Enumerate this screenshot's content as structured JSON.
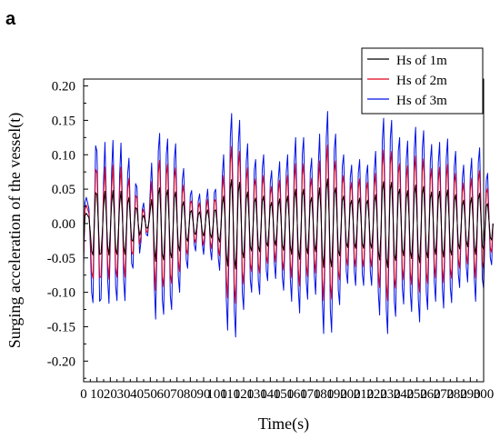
{
  "panel_label": "a",
  "chart_data": {
    "type": "line",
    "title": "",
    "xlabel": "Time(s)",
    "ylabel": "Surging acceleration of the vessel(t)",
    "xlim": [
      0,
      300
    ],
    "ylim": [
      -0.23,
      0.21
    ],
    "xticks": [
      0,
      10,
      20,
      30,
      40,
      50,
      60,
      70,
      80,
      90,
      100,
      110,
      120,
      130,
      140,
      150,
      160,
      170,
      180,
      190,
      200,
      210,
      220,
      230,
      240,
      250,
      260,
      270,
      280,
      290,
      300
    ],
    "xtick_labels": [
      "0",
      "10",
      "20",
      "30",
      "40",
      "50",
      "60",
      "70",
      "80",
      "90",
      "100",
      "110",
      "120",
      "130",
      "140",
      "150",
      "160",
      "170",
      "180",
      "190",
      "200",
      "210",
      "220",
      "230",
      "240",
      "250",
      "260",
      "270",
      "280",
      "290",
      "300"
    ],
    "yticks": [
      0.2,
      0.15,
      0.1,
      0.05,
      0.0,
      -0.05,
      -0.1,
      -0.15,
      -0.2
    ],
    "ytick_labels": [
      "0.20",
      "0.15",
      "0.10",
      "0.05",
      "0.00",
      "-0.05",
      "-0.10",
      "-0.15",
      "-0.20"
    ],
    "grid": false,
    "legend_position": "top-right",
    "sample_step": 1,
    "series": [
      {
        "name": "Hs of 1m",
        "color": "#000000",
        "values": [
          -0.03,
          0.011,
          0.015,
          0.012,
          0.008,
          -0.012,
          -0.04,
          -0.046,
          0.0,
          0.045,
          0.042,
          0.002,
          -0.045,
          -0.044,
          -0.014,
          0.026,
          0.047,
          0.013,
          -0.032,
          -0.046,
          -0.011,
          0.03,
          0.048,
          0.013,
          -0.036,
          -0.045,
          -0.014,
          0.028,
          0.047,
          0.014,
          -0.033,
          -0.045,
          -0.013,
          0.029,
          0.038,
          0.006,
          -0.023,
          -0.026,
          0.0,
          0.023,
          0.021,
          -0.001,
          -0.017,
          -0.01,
          0.008,
          0.012,
          0.004,
          -0.006,
          -0.007,
          0.002,
          0.02,
          0.035,
          0.012,
          -0.036,
          -0.055,
          -0.015,
          0.042,
          0.052,
          0.009,
          -0.044,
          -0.053,
          -0.012,
          0.04,
          0.049,
          0.007,
          -0.042,
          -0.05,
          -0.011,
          0.037,
          0.046,
          0.007,
          -0.031,
          -0.04,
          -0.007,
          0.025,
          0.032,
          0.006,
          -0.021,
          -0.026,
          -0.005,
          0.016,
          0.019,
          0.004,
          -0.013,
          -0.016,
          -0.003,
          0.013,
          0.017,
          0.005,
          -0.012,
          -0.018,
          -0.006,
          0.013,
          0.02,
          0.007,
          -0.015,
          -0.021,
          -0.005,
          0.018,
          0.02,
          0.002,
          -0.02,
          -0.027,
          -0.004,
          0.028,
          0.04,
          0.009,
          -0.044,
          -0.062,
          -0.016,
          0.05,
          0.064,
          0.016,
          -0.05,
          -0.066,
          -0.017,
          0.046,
          0.06,
          0.015,
          -0.04,
          -0.05,
          -0.01,
          0.036,
          0.046,
          0.009,
          -0.033,
          -0.04,
          -0.007,
          0.031,
          0.037,
          0.005,
          -0.033,
          -0.041,
          -0.007,
          0.032,
          0.04,
          0.008,
          -0.027,
          -0.033,
          -0.007,
          0.024,
          0.031,
          0.009,
          -0.023,
          -0.032,
          -0.008,
          0.026,
          0.036,
          0.009,
          -0.031,
          -0.039,
          -0.009,
          0.03,
          0.04,
          0.01,
          -0.032,
          -0.045,
          -0.012,
          0.036,
          0.05,
          0.012,
          -0.038,
          -0.052,
          -0.011,
          0.04,
          0.05,
          0.01,
          -0.034,
          -0.044,
          -0.009,
          0.03,
          0.038,
          0.008,
          -0.03,
          -0.041,
          -0.011,
          0.034,
          0.052,
          0.016,
          -0.045,
          -0.064,
          -0.017,
          0.05,
          0.065,
          0.016,
          -0.05,
          -0.063,
          -0.015,
          0.043,
          0.052,
          0.01,
          -0.039,
          -0.047,
          -0.009,
          0.033,
          0.04,
          0.009,
          -0.028,
          -0.035,
          -0.008,
          0.027,
          0.034,
          0.008,
          -0.028,
          -0.036,
          -0.008,
          0.029,
          0.037,
          0.009,
          -0.029,
          -0.036,
          -0.007,
          0.028,
          0.034,
          0.007,
          -0.028,
          -0.036,
          -0.009,
          0.031,
          0.042,
          0.01,
          -0.04,
          -0.053,
          -0.012,
          0.048,
          0.061,
          0.014,
          -0.05,
          -0.064,
          -0.015,
          0.049,
          0.06,
          0.013,
          -0.045,
          -0.054,
          -0.01,
          0.042,
          0.05,
          0.01,
          -0.037,
          -0.047,
          -0.011,
          0.037,
          0.048,
          0.011,
          -0.04,
          -0.051,
          -0.012,
          0.043,
          0.056,
          0.013,
          -0.044,
          -0.057,
          -0.012,
          0.043,
          0.054,
          0.012,
          -0.04,
          -0.05,
          -0.011,
          0.036,
          0.046,
          0.011,
          -0.034,
          -0.045,
          -0.01,
          0.035,
          0.047,
          0.012,
          -0.037,
          -0.049,
          -0.011,
          0.038,
          0.049,
          0.01,
          -0.037,
          -0.046,
          -0.009,
          0.033,
          0.042,
          0.009,
          -0.029,
          -0.037,
          -0.008,
          0.026,
          0.034,
          0.008,
          -0.025,
          -0.034,
          -0.008,
          0.028,
          0.038,
          0.009,
          -0.032,
          -0.045,
          -0.011,
          0.035,
          0.044,
          0.008,
          -0.032,
          -0.038,
          -0.006,
          0.025,
          0.029,
          0.004,
          -0.02,
          -0.024,
          0.0
        ]
      },
      {
        "name": "Hs of 2m",
        "color": "#e0001b",
        "values": [
          -0.05,
          0.02,
          0.027,
          0.021,
          0.014,
          -0.021,
          -0.07,
          -0.08,
          0.0,
          0.079,
          0.073,
          0.003,
          -0.079,
          -0.077,
          -0.024,
          0.046,
          0.082,
          0.023,
          -0.057,
          -0.081,
          -0.019,
          0.052,
          0.085,
          0.023,
          -0.064,
          -0.078,
          -0.024,
          0.049,
          0.082,
          0.025,
          -0.057,
          -0.078,
          -0.022,
          0.05,
          0.066,
          0.011,
          -0.041,
          -0.045,
          0.0,
          0.041,
          0.037,
          -0.002,
          -0.03,
          -0.018,
          0.015,
          0.021,
          0.007,
          -0.011,
          -0.013,
          0.004,
          0.034,
          0.061,
          0.021,
          -0.062,
          -0.097,
          -0.026,
          0.073,
          0.092,
          0.016,
          -0.077,
          -0.092,
          -0.021,
          0.07,
          0.086,
          0.012,
          -0.073,
          -0.087,
          -0.019,
          0.065,
          0.081,
          0.013,
          -0.054,
          -0.07,
          -0.013,
          0.044,
          0.056,
          0.01,
          -0.037,
          -0.045,
          -0.009,
          0.029,
          0.033,
          0.007,
          -0.022,
          -0.028,
          -0.005,
          0.023,
          0.03,
          0.008,
          -0.021,
          -0.032,
          -0.011,
          0.023,
          0.035,
          0.012,
          -0.026,
          -0.037,
          -0.009,
          0.032,
          0.035,
          0.004,
          -0.035,
          -0.047,
          -0.008,
          0.049,
          0.07,
          0.016,
          -0.077,
          -0.108,
          -0.028,
          0.087,
          0.112,
          0.028,
          -0.088,
          -0.116,
          -0.03,
          0.081,
          0.105,
          0.026,
          -0.07,
          -0.088,
          -0.017,
          0.063,
          0.081,
          0.016,
          -0.058,
          -0.07,
          -0.012,
          0.054,
          0.065,
          0.009,
          -0.058,
          -0.072,
          -0.012,
          0.056,
          0.07,
          0.014,
          -0.047,
          -0.058,
          -0.012,
          0.042,
          0.054,
          0.016,
          -0.04,
          -0.056,
          -0.014,
          0.045,
          0.063,
          0.016,
          -0.054,
          -0.068,
          -0.016,
          0.053,
          0.07,
          0.017,
          -0.056,
          -0.079,
          -0.021,
          0.063,
          0.087,
          0.021,
          -0.066,
          -0.091,
          -0.019,
          0.07,
          0.087,
          0.017,
          -0.06,
          -0.077,
          -0.016,
          0.052,
          0.066,
          0.014,
          -0.052,
          -0.072,
          -0.019,
          0.06,
          0.091,
          0.028,
          -0.079,
          -0.112,
          -0.03,
          0.087,
          0.114,
          0.028,
          -0.087,
          -0.11,
          -0.026,
          0.075,
          0.091,
          0.017,
          -0.068,
          -0.082,
          -0.016,
          0.058,
          0.07,
          0.016,
          -0.049,
          -0.061,
          -0.014,
          0.047,
          0.06,
          0.014,
          -0.049,
          -0.063,
          -0.014,
          0.051,
          0.065,
          0.016,
          -0.051,
          -0.063,
          -0.012,
          0.049,
          0.06,
          0.012,
          -0.049,
          -0.063,
          -0.016,
          0.054,
          0.073,
          0.017,
          -0.07,
          -0.093,
          -0.021,
          0.084,
          0.107,
          0.024,
          -0.087,
          -0.112,
          -0.026,
          0.086,
          0.105,
          0.023,
          -0.079,
          -0.094,
          -0.017,
          0.073,
          0.087,
          0.017,
          -0.065,
          -0.082,
          -0.019,
          0.065,
          0.084,
          0.019,
          -0.07,
          -0.089,
          -0.021,
          0.075,
          0.098,
          0.023,
          -0.077,
          -0.1,
          -0.021,
          0.075,
          0.094,
          0.021,
          -0.07,
          -0.087,
          -0.019,
          0.063,
          0.08,
          0.019,
          -0.059,
          -0.079,
          -0.017,
          0.061,
          0.082,
          0.021,
          -0.065,
          -0.086,
          -0.019,
          0.066,
          0.086,
          0.017,
          -0.065,
          -0.08,
          -0.016,
          0.058,
          0.073,
          0.016,
          -0.051,
          -0.065,
          -0.014,
          0.045,
          0.059,
          0.014,
          -0.044,
          -0.059,
          -0.014,
          0.049,
          0.066,
          0.016,
          -0.056,
          -0.079,
          -0.019,
          0.061,
          0.077,
          0.014,
          -0.056,
          -0.066,
          -0.01,
          0.044,
          0.051,
          0.007,
          -0.035,
          -0.042,
          0.0
        ]
      },
      {
        "name": "Hs of 3m",
        "color": "#0010e6",
        "values": [
          -0.06,
          0.03,
          0.038,
          0.03,
          0.021,
          -0.031,
          -0.1,
          -0.115,
          0.0,
          0.113,
          0.105,
          0.005,
          -0.113,
          -0.11,
          -0.035,
          0.065,
          0.118,
          0.033,
          -0.081,
          -0.116,
          -0.028,
          0.075,
          0.121,
          0.033,
          -0.091,
          -0.112,
          -0.035,
          0.07,
          0.117,
          0.035,
          -0.082,
          -0.112,
          -0.032,
          0.072,
          0.095,
          0.016,
          -0.058,
          -0.065,
          0.0,
          0.058,
          0.053,
          -0.003,
          -0.043,
          -0.026,
          0.021,
          0.03,
          0.01,
          -0.016,
          -0.018,
          0.006,
          0.049,
          0.088,
          0.03,
          -0.089,
          -0.139,
          -0.037,
          0.105,
          0.131,
          0.023,
          -0.11,
          -0.132,
          -0.03,
          0.1,
          0.123,
          0.017,
          -0.105,
          -0.125,
          -0.028,
          0.093,
          0.116,
          0.019,
          -0.077,
          -0.1,
          -0.018,
          0.063,
          0.08,
          0.014,
          -0.053,
          -0.065,
          -0.012,
          0.041,
          0.048,
          0.01,
          -0.031,
          -0.04,
          -0.007,
          0.033,
          0.043,
          0.012,
          -0.03,
          -0.045,
          -0.016,
          0.033,
          0.05,
          0.017,
          -0.037,
          -0.053,
          -0.013,
          0.045,
          0.05,
          0.006,
          -0.05,
          -0.068,
          -0.01,
          0.07,
          0.1,
          0.023,
          -0.11,
          -0.155,
          -0.04,
          0.125,
          0.16,
          0.04,
          -0.126,
          -0.165,
          -0.042,
          0.116,
          0.15,
          0.037,
          -0.1,
          -0.125,
          -0.025,
          0.09,
          0.116,
          0.023,
          -0.082,
          -0.1,
          -0.018,
          0.078,
          0.093,
          0.013,
          -0.083,
          -0.103,
          -0.018,
          0.08,
          0.1,
          0.02,
          -0.068,
          -0.083,
          -0.017,
          0.06,
          0.077,
          0.023,
          -0.057,
          -0.08,
          -0.02,
          0.065,
          0.09,
          0.023,
          -0.077,
          -0.097,
          -0.023,
          0.075,
          0.1,
          0.025,
          -0.08,
          -0.113,
          -0.03,
          0.09,
          0.125,
          0.03,
          -0.095,
          -0.13,
          -0.028,
          0.1,
          0.125,
          0.025,
          -0.085,
          -0.11,
          -0.023,
          0.075,
          0.095,
          0.02,
          -0.075,
          -0.103,
          -0.028,
          0.085,
          0.13,
          0.04,
          -0.113,
          -0.16,
          -0.043,
          0.125,
          0.163,
          0.04,
          -0.125,
          -0.158,
          -0.037,
          0.108,
          0.13,
          0.025,
          -0.097,
          -0.118,
          -0.023,
          0.083,
          0.1,
          0.023,
          -0.07,
          -0.087,
          -0.02,
          0.067,
          0.085,
          0.02,
          -0.07,
          -0.09,
          -0.02,
          0.073,
          0.093,
          0.023,
          -0.073,
          -0.09,
          -0.017,
          0.07,
          0.085,
          0.017,
          -0.07,
          -0.09,
          -0.023,
          0.077,
          0.105,
          0.025,
          -0.1,
          -0.133,
          -0.03,
          0.12,
          0.153,
          0.035,
          -0.125,
          -0.16,
          -0.037,
          0.123,
          0.15,
          0.033,
          -0.113,
          -0.135,
          -0.025,
          0.105,
          0.125,
          0.025,
          -0.093,
          -0.117,
          -0.027,
          0.093,
          0.12,
          0.027,
          -0.1,
          -0.128,
          -0.03,
          0.108,
          0.14,
          0.033,
          -0.11,
          -0.143,
          -0.03,
          0.108,
          0.135,
          0.03,
          -0.1,
          -0.125,
          -0.027,
          0.09,
          0.115,
          0.027,
          -0.085,
          -0.113,
          -0.025,
          0.088,
          0.118,
          0.03,
          -0.093,
          -0.123,
          -0.027,
          0.095,
          0.123,
          0.025,
          -0.093,
          -0.115,
          -0.023,
          0.083,
          0.105,
          0.023,
          -0.073,
          -0.093,
          -0.02,
          0.065,
          0.085,
          0.02,
          -0.063,
          -0.085,
          -0.02,
          0.07,
          0.095,
          0.023,
          -0.08,
          -0.113,
          -0.028,
          0.088,
          0.11,
          0.02,
          -0.08,
          -0.095,
          -0.015,
          0.063,
          0.073,
          0.01,
          -0.05,
          -0.06,
          0.0
        ]
      }
    ]
  }
}
